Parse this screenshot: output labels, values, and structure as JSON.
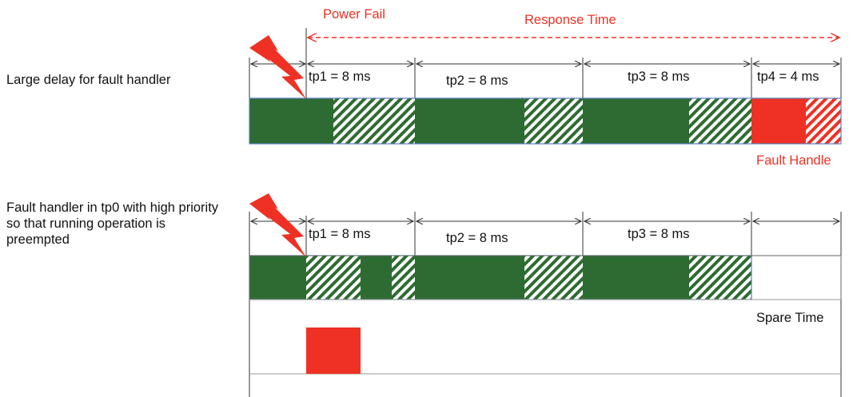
{
  "top": {
    "annotations": {
      "power_fail": "Power Fail",
      "response_time": "Response Time",
      "fault_handle": "Fault Handle"
    },
    "description": "Large delay for fault handler",
    "periods": [
      "tp1 = 8 ms",
      "tp2 = 8 ms",
      "tp3 = 8 ms",
      "tp4 = 4 ms"
    ]
  },
  "bottom": {
    "description": "Fault handler in tp0 with high priority so that running operation is preempted",
    "periods": [
      "tp1 = 8 ms",
      "tp2 = 8 ms",
      "tp3 = 8 ms"
    ],
    "spare_time": "Spare Time"
  },
  "colors": {
    "running": "#2e6b32",
    "fault": "#ee3124",
    "idle_hatch": "#2e6b32",
    "border": "#5b7fbf"
  }
}
